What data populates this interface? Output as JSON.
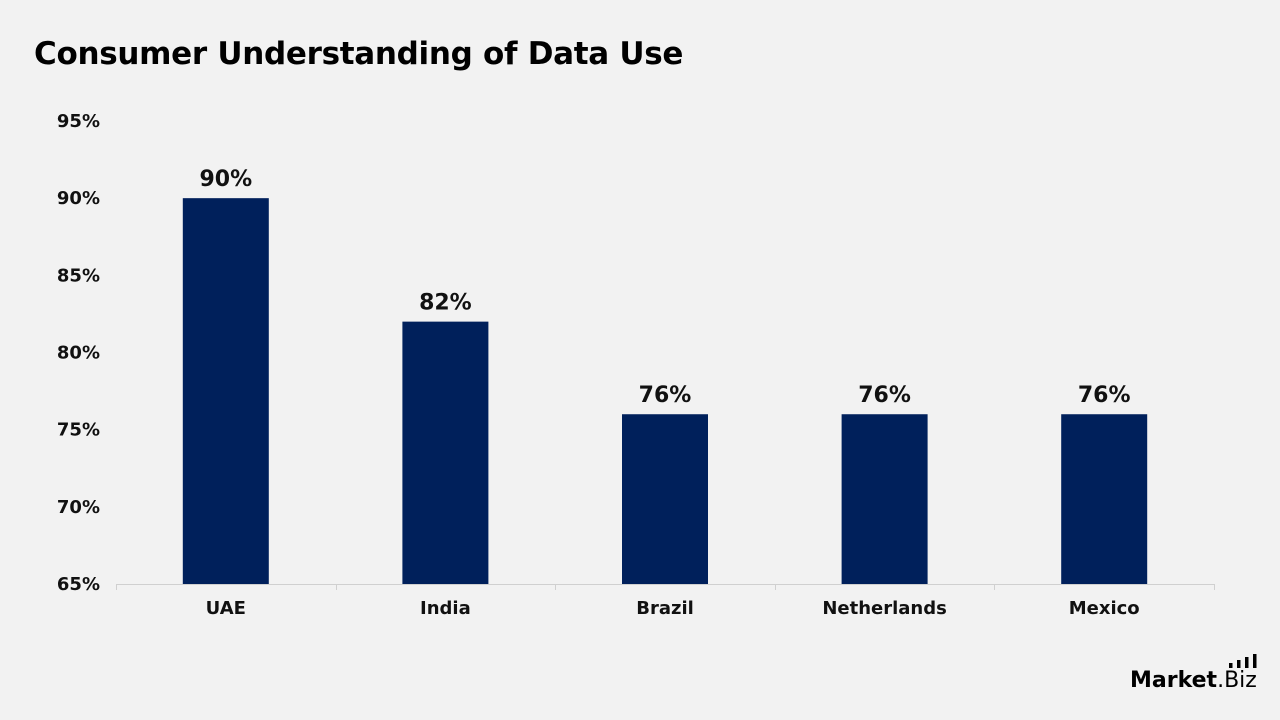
{
  "title": "Consumer Understanding of Data Use",
  "chart_data": {
    "type": "bar",
    "title": "Consumer Understanding of Data Use",
    "categories": [
      "UAE",
      "India",
      "Brazil",
      "Netherlands",
      "Mexico"
    ],
    "values": [
      90,
      82,
      76,
      76,
      76
    ],
    "data_labels": [
      "90%",
      "82%",
      "76%",
      "76%",
      "76%"
    ],
    "yticks": [
      65,
      70,
      75,
      80,
      85,
      90,
      95
    ],
    "ytick_labels": [
      "65%",
      "70%",
      "75%",
      "80%",
      "85%",
      "90%",
      "95%"
    ],
    "ylim": [
      65,
      95
    ],
    "grid": false,
    "legend": "none",
    "bar_color": "#00205b"
  },
  "logo": {
    "name_bold": "Market",
    "name_light": ".Biz",
    "icon": "bar-chart-icon"
  }
}
